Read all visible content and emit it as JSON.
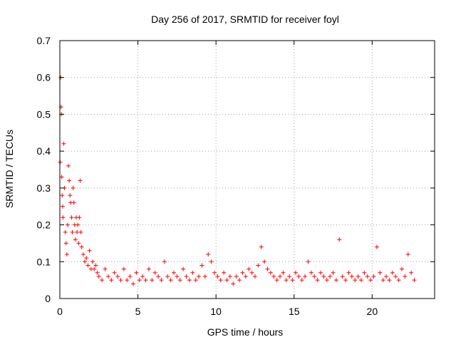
{
  "chart_data": {
    "type": "scatter",
    "title": "Day 256 of 2017, SRMTID for receiver foyl",
    "xlabel": "GPS time / hours",
    "ylabel": "SRMTID / TECUs",
    "xlim": [
      0,
      24
    ],
    "ylim": [
      0,
      0.7
    ],
    "xticks": [
      0,
      5,
      10,
      15,
      20
    ],
    "xtick_labels": [
      "0",
      "5",
      "10",
      "15",
      "20"
    ],
    "yticks": [
      0,
      0.1,
      0.2,
      0.3,
      0.4,
      0.5,
      0.6,
      0.7
    ],
    "ytick_labels": [
      "0",
      "0.1",
      "0.2",
      "0.3",
      "0.4",
      "0.5",
      "0.6",
      "0.7"
    ],
    "grid": true,
    "marker": "+",
    "marker_color": "#ff0000",
    "series": [
      {
        "name": "SRMTID",
        "x": [
          0.02,
          0.05,
          0.08,
          0.1,
          0.12,
          0.15,
          0.18,
          0.2,
          0.25,
          0.3,
          0.35,
          0.4,
          0.45,
          0.5,
          0.55,
          0.6,
          0.65,
          0.7,
          0.75,
          0.8,
          0.85,
          0.9,
          0.95,
          1.0,
          1.05,
          1.1,
          1.15,
          1.2,
          1.25,
          1.3,
          1.35,
          1.4,
          1.5,
          1.6,
          1.7,
          1.8,
          1.9,
          2.0,
          2.1,
          2.2,
          2.3,
          2.4,
          2.5,
          2.7,
          2.9,
          3.1,
          3.3,
          3.5,
          3.7,
          3.9,
          4.1,
          4.3,
          4.5,
          4.7,
          4.9,
          5.1,
          5.3,
          5.5,
          5.7,
          5.9,
          6.1,
          6.3,
          6.5,
          6.7,
          6.9,
          7.1,
          7.3,
          7.5,
          7.7,
          7.9,
          8.1,
          8.3,
          8.5,
          8.7,
          8.9,
          9.1,
          9.3,
          9.5,
          9.7,
          9.9,
          10.1,
          10.3,
          10.5,
          10.7,
          10.9,
          11.1,
          11.3,
          11.5,
          11.7,
          11.9,
          12.1,
          12.3,
          12.5,
          12.7,
          12.9,
          13.1,
          13.3,
          13.5,
          13.7,
          13.9,
          14.1,
          14.3,
          14.5,
          14.7,
          14.9,
          15.1,
          15.3,
          15.5,
          15.7,
          15.9,
          16.1,
          16.3,
          16.5,
          16.7,
          16.9,
          17.1,
          17.3,
          17.5,
          17.7,
          17.9,
          18.1,
          18.3,
          18.5,
          18.7,
          18.9,
          19.1,
          19.3,
          19.5,
          19.7,
          19.9,
          20.1,
          20.3,
          20.5,
          20.7,
          20.9,
          21.1,
          21.3,
          21.5,
          21.7,
          21.9,
          22.1,
          22.3,
          22.5,
          22.7
        ],
        "y": [
          0.37,
          0.6,
          0.52,
          0.5,
          0.33,
          0.28,
          0.25,
          0.22,
          0.42,
          0.3,
          0.18,
          0.15,
          0.12,
          0.2,
          0.36,
          0.32,
          0.28,
          0.26,
          0.22,
          0.18,
          0.3,
          0.26,
          0.2,
          0.16,
          0.22,
          0.18,
          0.2,
          0.15,
          0.22,
          0.32,
          0.18,
          0.14,
          0.12,
          0.1,
          0.11,
          0.09,
          0.13,
          0.08,
          0.1,
          0.08,
          0.09,
          0.07,
          0.06,
          0.05,
          0.08,
          0.06,
          0.05,
          0.07,
          0.06,
          0.05,
          0.08,
          0.05,
          0.06,
          0.04,
          0.07,
          0.05,
          0.06,
          0.05,
          0.08,
          0.05,
          0.07,
          0.06,
          0.05,
          0.1,
          0.06,
          0.05,
          0.07,
          0.06,
          0.05,
          0.08,
          0.06,
          0.05,
          0.07,
          0.05,
          0.06,
          0.09,
          0.06,
          0.12,
          0.1,
          0.07,
          0.06,
          0.05,
          0.07,
          0.05,
          0.06,
          0.04,
          0.06,
          0.05,
          0.07,
          0.06,
          0.08,
          0.07,
          0.06,
          0.09,
          0.14,
          0.1,
          0.08,
          0.07,
          0.06,
          0.05,
          0.06,
          0.07,
          0.05,
          0.06,
          0.05,
          0.07,
          0.06,
          0.05,
          0.06,
          0.1,
          0.07,
          0.06,
          0.05,
          0.07,
          0.06,
          0.05,
          0.06,
          0.07,
          0.05,
          0.16,
          0.06,
          0.05,
          0.07,
          0.06,
          0.05,
          0.06,
          0.05,
          0.07,
          0.06,
          0.05,
          0.06,
          0.14,
          0.07,
          0.05,
          0.06,
          0.05,
          0.07,
          0.06,
          0.05,
          0.08,
          0.06,
          0.12,
          0.07,
          0.05
        ]
      }
    ]
  }
}
